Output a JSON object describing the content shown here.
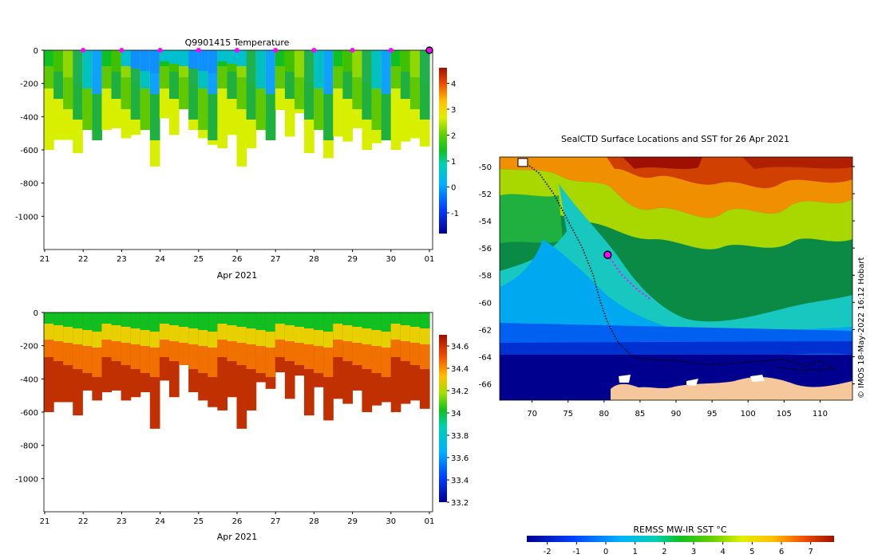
{
  "chart_data": [
    {
      "type": "heatmap",
      "panel": "temperature-section",
      "title": "Q9901415  Temperature",
      "xlabel": "Apr 2021",
      "x_ticks": [
        "21",
        "22",
        "23",
        "24",
        "25",
        "26",
        "27",
        "28",
        "29",
        "30",
        "01"
      ],
      "ylabel": "",
      "y_ticks": [
        0,
        -200,
        -400,
        -600,
        -800,
        -1000
      ],
      "ylim": [
        -1200,
        0
      ],
      "colorbar": {
        "ticks": [
          -1,
          0,
          1,
          2,
          3,
          4
        ],
        "range": [
          -1.8,
          4.6
        ]
      },
      "profile_markers_days": [
        22,
        23,
        24,
        25,
        26,
        27,
        28,
        29,
        30
      ],
      "current_profile_day": 31,
      "profile_max_depth_m": [
        600,
        540,
        540,
        620,
        470,
        530,
        480,
        470,
        530,
        510,
        480,
        700,
        410,
        510,
        300,
        480,
        530,
        570,
        590,
        510,
        700,
        590,
        420,
        460,
        360,
        520,
        380,
        620,
        450,
        650,
        520,
        550,
        470,
        600,
        560,
        540,
        600,
        550,
        530,
        580
      ]
    },
    {
      "type": "heatmap",
      "panel": "salinity-section",
      "title": "",
      "xlabel": "Apr 2021",
      "x_ticks": [
        "21",
        "22",
        "23",
        "24",
        "25",
        "26",
        "27",
        "28",
        "29",
        "30",
        "01"
      ],
      "y_ticks": [
        0,
        -200,
        -400,
        -600,
        -800,
        -1000
      ],
      "ylim": [
        -1200,
        0
      ],
      "colorbar": {
        "ticks": [
          33.2,
          33.4,
          33.6,
          33.8,
          34,
          34.2,
          34.4,
          34.6
        ],
        "range": [
          33.2,
          34.7
        ]
      }
    },
    {
      "type": "heatmap",
      "panel": "sst-map",
      "title": "SealCTD Surface Locations and SST for 26 Apr 2021",
      "x_ticks": [
        70,
        75,
        80,
        85,
        90,
        95,
        100,
        105,
        110
      ],
      "y_ticks": [
        -50,
        -52,
        -54,
        -56,
        -58,
        -60,
        -62,
        -64,
        -66
      ],
      "xlim": [
        65.5,
        114.5
      ],
      "ylim": [
        -67.2,
        -49.3
      ],
      "colorbar_label": "REMSS MW-IR SST °C",
      "colorbar": {
        "ticks": [
          -2,
          -1,
          0,
          1,
          2,
          3,
          4,
          5,
          6,
          7
        ],
        "range": [
          -2.7,
          7.8
        ]
      },
      "current_location": {
        "lon": 80.5,
        "lat": -56.5
      },
      "credit": "© IMOS 18-May-2022 16:12 Hobart"
    }
  ]
}
